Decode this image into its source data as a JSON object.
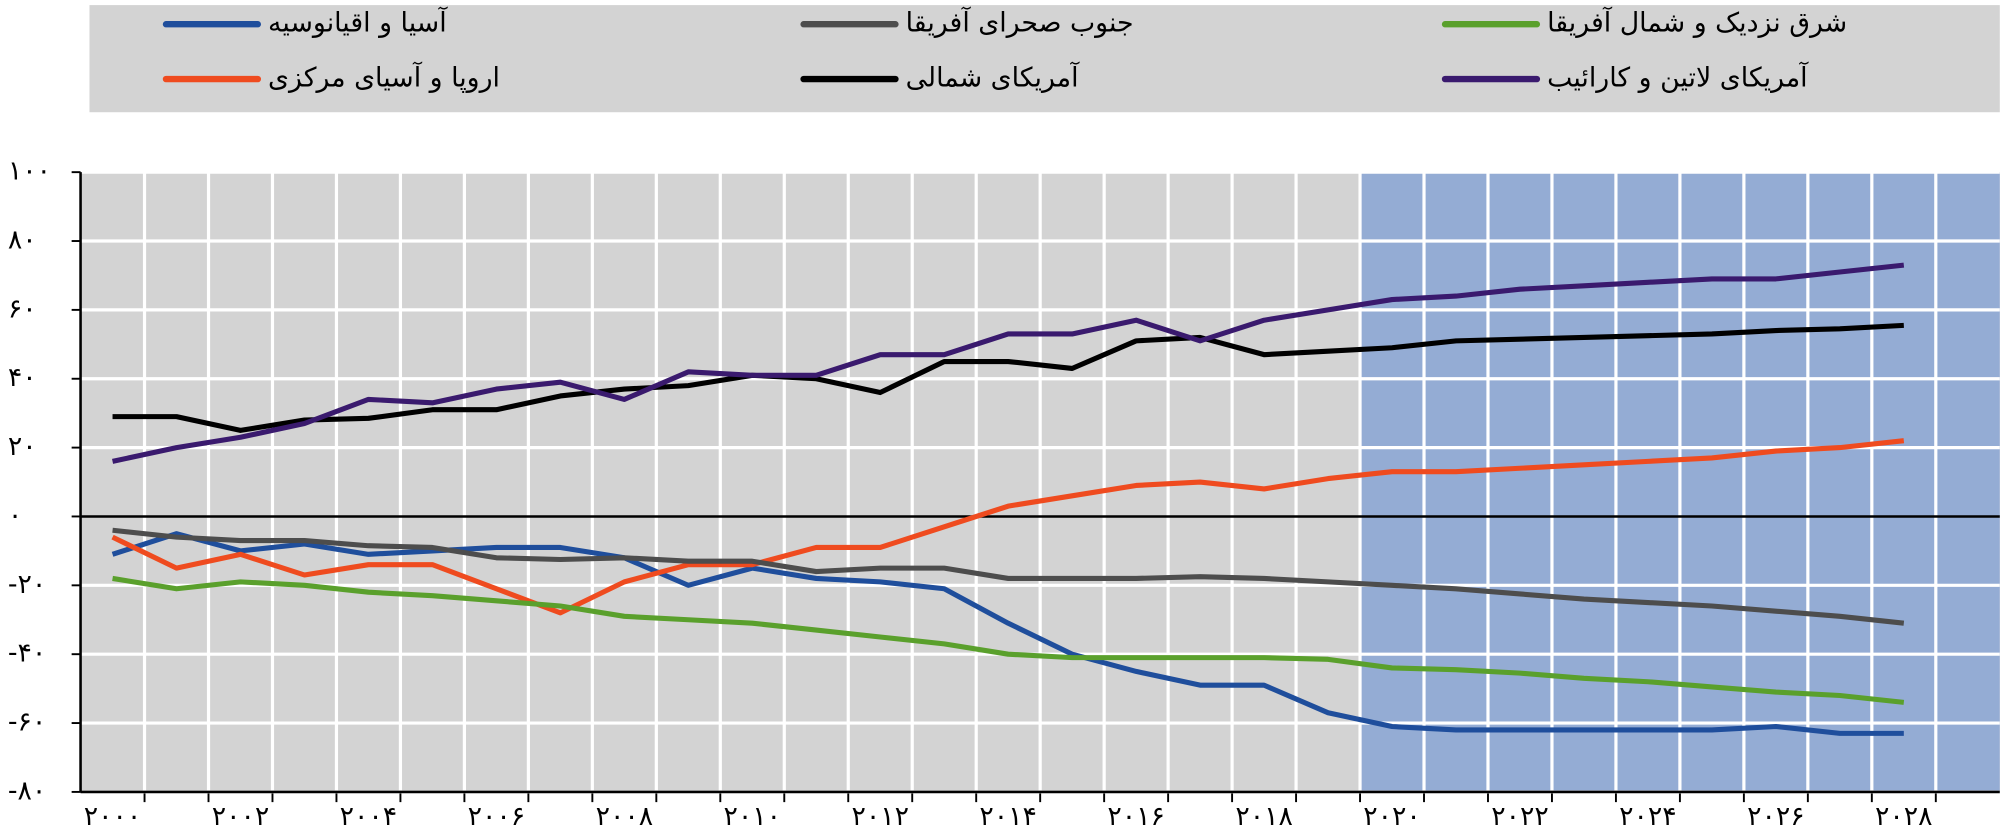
{
  "chart_data": {
    "type": "line",
    "x": [
      2000,
      2001,
      2002,
      2003,
      2004,
      2005,
      2006,
      2007,
      2008,
      2009,
      2010,
      2011,
      2012,
      2013,
      2014,
      2015,
      2016,
      2017,
      2018,
      2019,
      2020,
      2021,
      2022,
      2023,
      2024,
      2025,
      2026,
      2027,
      2028
    ],
    "series": [
      {
        "name": "آسیا و اقیانوسیه",
        "color": "#1f4e9c",
        "values": [
          -11,
          -5,
          -10,
          -8,
          -11,
          -10,
          -9,
          -9,
          -12,
          -20,
          -15,
          -18,
          -19,
          -21,
          -31,
          -40,
          -45,
          -49,
          -49,
          -57,
          -61,
          -62,
          -62,
          -62,
          -62,
          -62,
          -61,
          -63,
          -63
        ]
      },
      {
        "name": "اروپا و آسیای مرکزی",
        "color": "#ef4b1f",
        "values": [
          -6,
          -15,
          -11,
          -17,
          -14,
          -14,
          -21,
          -28,
          -19,
          -14,
          -14,
          -9,
          -9,
          -3,
          3,
          6,
          9,
          10,
          8,
          11,
          13,
          13,
          14,
          15,
          16,
          17,
          19,
          20,
          22
        ]
      },
      {
        "name": "جنوب صحرای آفریقا",
        "color": "#4d4d4d",
        "values": [
          -4,
          -6,
          -7,
          -7,
          -8.5,
          -9,
          -12,
          -12.5,
          -12,
          -13,
          -13,
          -16,
          -15,
          -15,
          -18,
          -18,
          -18,
          -17.5,
          -18,
          -19,
          -20,
          -21,
          -22.5,
          -24,
          -25,
          -26,
          -27.5,
          -29,
          -31
        ]
      },
      {
        "name": "آمریکای شمالی",
        "color": "#000000",
        "values": [
          29,
          29,
          25,
          28,
          28.5,
          31,
          31,
          35,
          37,
          38,
          41,
          40,
          36,
          45,
          45,
          43,
          51,
          52,
          47,
          48,
          49,
          51,
          51.5,
          52,
          52.5,
          53,
          54,
          54.5,
          55.5
        ]
      },
      {
        "name": "شرق نزدیک و شمال آفریقا",
        "color": "#5aa02c",
        "values": [
          -18,
          -21,
          -19,
          -20,
          -22,
          -23,
          -24.5,
          -26,
          -29,
          -30,
          -31,
          -33,
          -35,
          -37,
          -40,
          -41,
          -41,
          -41,
          -41,
          -41.5,
          -44,
          -44.5,
          -45.5,
          -47,
          -48,
          -49.5,
          -51,
          -52,
          -54
        ]
      },
      {
        "name": "آمریکای لاتین و کارائیب",
        "color": "#3a1a6e",
        "values": [
          16,
          20,
          23,
          27,
          34,
          33,
          37,
          39,
          34,
          42,
          41,
          41,
          47,
          47,
          53,
          53,
          57,
          51,
          57,
          60,
          63,
          64,
          66,
          67,
          68,
          69,
          69,
          71,
          73
        ]
      }
    ],
    "xlim": [
      1999.5,
      2029.5
    ],
    "xticks": [
      {
        "value": 2000,
        "label": "۲۰۰۰"
      },
      {
        "value": 2002,
        "label": "۲۰۰۲"
      },
      {
        "value": 2004,
        "label": "۲۰۰۴"
      },
      {
        "value": 2006,
        "label": "۲۰۰۶"
      },
      {
        "value": 2008,
        "label": "۲۰۰۸"
      },
      {
        "value": 2010,
        "label": "۲۰۱۰"
      },
      {
        "value": 2012,
        "label": "۲۰۱۲"
      },
      {
        "value": 2014,
        "label": "۲۰۱۴"
      },
      {
        "value": 2016,
        "label": "۲۰۱۶"
      },
      {
        "value": 2018,
        "label": "۲۰۱۸"
      },
      {
        "value": 2020,
        "label": "۲۰۲۰"
      },
      {
        "value": 2022,
        "label": "۲۰۲۲"
      },
      {
        "value": 2024,
        "label": "۲۰۲۴"
      },
      {
        "value": 2026,
        "label": "۲۰۲۶"
      },
      {
        "value": 2028,
        "label": "۲۰۲۸"
      }
    ],
    "ylim": [
      -80,
      100
    ],
    "yticks": [
      {
        "value": -80,
        "label": "-۸۰"
      },
      {
        "value": -60,
        "label": "-۶۰"
      },
      {
        "value": -40,
        "label": "-۴۰"
      },
      {
        "value": -20,
        "label": "-۲۰"
      },
      {
        "value": 0,
        "label": "۰"
      },
      {
        "value": 20,
        "label": "۲۰"
      },
      {
        "value": 40,
        "label": "۴۰"
      },
      {
        "value": 60,
        "label": "۶۰"
      },
      {
        "value": 80,
        "label": "۸۰"
      },
      {
        "value": 100,
        "label": "۱۰۰"
      }
    ],
    "grid": true,
    "shaded_from": 2019.5,
    "shade_color": "#94acd4",
    "plot_color": "#d3d3d3"
  }
}
